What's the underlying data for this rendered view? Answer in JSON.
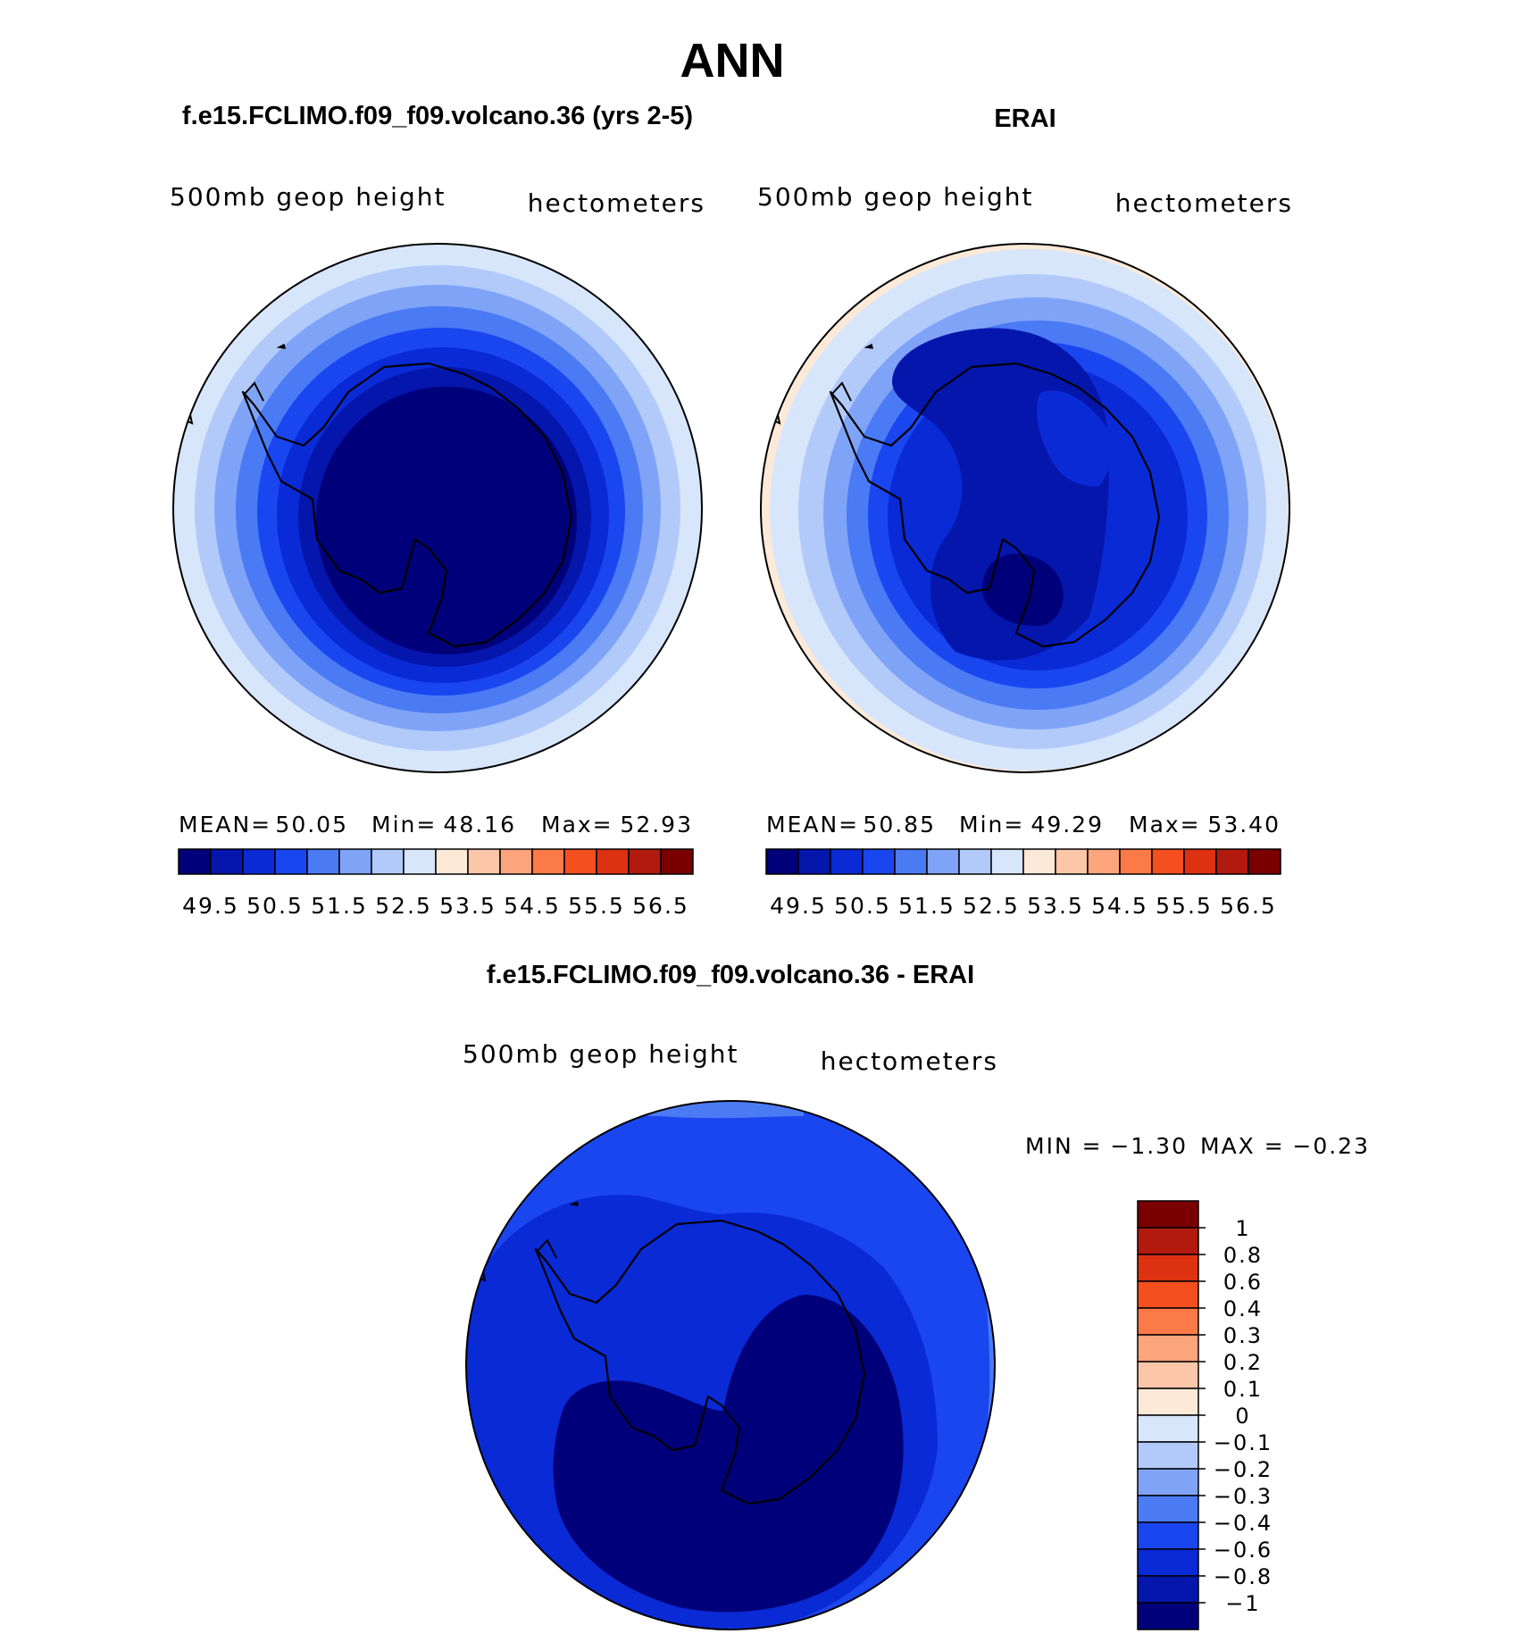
{
  "figure": {
    "season": "ANN"
  },
  "chart_data": [
    {
      "type": "polar-contour",
      "title": "f.e15.FCLIMO.f09_f09.volcano.36 (yrs 2-5)",
      "variable": "500mb geop height",
      "units": "hectometers",
      "stats": {
        "mean_label": "MEAN=",
        "mean": "50.05",
        "min_label": "Min=",
        "min": "48.16",
        "max_label": "Max=",
        "max": "52.93"
      },
      "levels": [
        49.5,
        50,
        50.5,
        51,
        51.5,
        52,
        52.5,
        53,
        53.5,
        54,
        54.5,
        55,
        55.5,
        56,
        56.5
      ],
      "colorbar_labels": [
        "49.5",
        "50.5",
        "51.5",
        "52.5",
        "53.5",
        "54.5",
        "55.5",
        "56.5"
      ],
      "colors": [
        "#00007a",
        "#0516ad",
        "#0a2ad6",
        "#1a46f0",
        "#4b7af5",
        "#7fa4f7",
        "#b2cafa",
        "#d7e6fb",
        "#fde9d8",
        "#fcc6a8",
        "#fca57d",
        "#fb7a47",
        "#f44f1f",
        "#dd3211",
        "#b11a0c",
        "#7a0000"
      ]
    },
    {
      "type": "polar-contour",
      "title": "ERAI",
      "variable": "500mb geop height",
      "units": "hectometers",
      "stats": {
        "mean_label": "MEAN=",
        "mean": "50.85",
        "min_label": "Min=",
        "min": "49.29",
        "max_label": "Max=",
        "max": "53.40"
      },
      "levels": [
        49.5,
        50,
        50.5,
        51,
        51.5,
        52,
        52.5,
        53,
        53.5,
        54,
        54.5,
        55,
        55.5,
        56,
        56.5
      ],
      "colorbar_labels": [
        "49.5",
        "50.5",
        "51.5",
        "52.5",
        "53.5",
        "54.5",
        "55.5",
        "56.5"
      ],
      "colors": [
        "#00007a",
        "#0516ad",
        "#0a2ad6",
        "#1a46f0",
        "#4b7af5",
        "#7fa4f7",
        "#b2cafa",
        "#d7e6fb",
        "#fde9d8",
        "#fcc6a8",
        "#fca57d",
        "#fb7a47",
        "#f44f1f",
        "#dd3211",
        "#b11a0c",
        "#7a0000"
      ]
    },
    {
      "type": "polar-contour",
      "title": "f.e15.FCLIMO.f09_f09.volcano.36 - ERAI",
      "variable": "500mb geop height",
      "units": "hectometers",
      "stats": {
        "min_label": "MIN =",
        "min": "−1.30",
        "max_label": "MAX =",
        "max": "−0.23"
      },
      "levels": [
        -1,
        -0.8,
        -0.6,
        -0.4,
        -0.3,
        -0.2,
        -0.1,
        0,
        0.1,
        0.2,
        0.3,
        0.4,
        0.6,
        0.8,
        1
      ],
      "colorbar_labels": [
        "1",
        "0.8",
        "0.6",
        "0.4",
        "0.3",
        "0.2",
        "0.1",
        "0",
        "−0.1",
        "−0.2",
        "−0.3",
        "−0.4",
        "−0.6",
        "−0.8",
        "−1"
      ],
      "colors": [
        "#00007a",
        "#0516ad",
        "#0a2ad6",
        "#1a46f0",
        "#4b7af5",
        "#7fa4f7",
        "#b2cafa",
        "#d7e6fb",
        "#fde9d8",
        "#fcc6a8",
        "#fca57d",
        "#fb7a47",
        "#f44f1f",
        "#dd3211",
        "#b11a0c",
        "#7a0000"
      ]
    }
  ]
}
